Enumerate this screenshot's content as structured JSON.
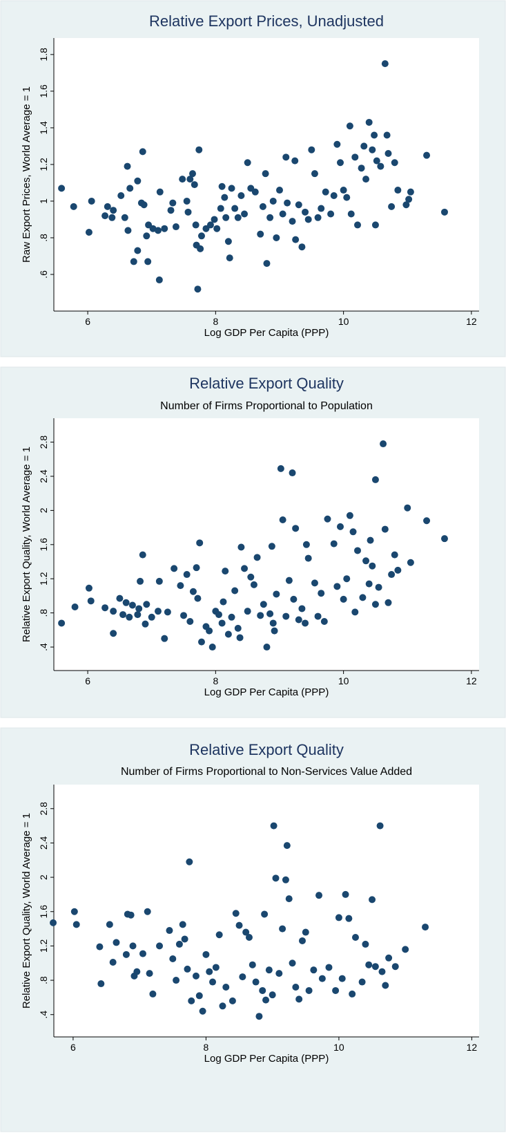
{
  "chart_data": [
    {
      "type": "scatter",
      "title": "Relative Export Prices, Unadjusted",
      "xlabel": "Log GDP Per Capita (PPP)",
      "ylabel": "Raw Export Prices, World Average = 1",
      "color": "#1a476f",
      "xlim": [
        5.47,
        12.12
      ],
      "xticks": [
        6,
        8,
        10,
        12
      ],
      "ylim": [
        0.4,
        1.89
      ],
      "yticks": [
        {
          "value": 0.6,
          "label": ".6"
        },
        {
          "value": 0.8,
          "label": ".8"
        },
        1,
        1.2,
        1.4,
        1.6,
        1.8
      ],
      "x": [
        5.59,
        5.78,
        6.02,
        6.06,
        6.27,
        6.31,
        6.38,
        6.4,
        6.52,
        6.58,
        6.62,
        6.63,
        6.66,
        6.72,
        6.78,
        6.78,
        6.84,
        6.86,
        6.88,
        6.92,
        6.94,
        6.95,
        7.02,
        7.1,
        7.12,
        7.13,
        7.2,
        7.3,
        7.33,
        7.38,
        7.48,
        7.55,
        7.57,
        7.6,
        7.64,
        7.67,
        7.69,
        7.7,
        7.72,
        7.74,
        7.76,
        7.78,
        7.85,
        7.92,
        7.98,
        8.02,
        8.08,
        8.1,
        8.14,
        8.16,
        8.2,
        8.22,
        8.25,
        8.3,
        8.35,
        8.4,
        8.45,
        8.5,
        8.55,
        8.62,
        8.7,
        8.74,
        8.78,
        8.8,
        8.85,
        8.9,
        8.95,
        9.0,
        9.05,
        9.1,
        9.12,
        9.2,
        9.24,
        9.25,
        9.3,
        9.35,
        9.4,
        9.45,
        9.5,
        9.55,
        9.6,
        9.65,
        9.72,
        9.8,
        9.85,
        9.9,
        9.95,
        10.0,
        10.05,
        10.1,
        10.12,
        10.18,
        10.22,
        10.28,
        10.32,
        10.35,
        10.4,
        10.45,
        10.48,
        10.5,
        10.52,
        10.58,
        10.65,
        10.68,
        10.7,
        10.75,
        10.8,
        10.85,
        10.98,
        11.02,
        11.05,
        11.3,
        11.58
      ],
      "values": [
        1.07,
        0.97,
        0.83,
        1.0,
        0.92,
        0.97,
        0.91,
        0.95,
        1.03,
        0.91,
        1.19,
        0.84,
        1.07,
        0.67,
        1.11,
        0.73,
        0.99,
        1.27,
        0.98,
        0.81,
        0.67,
        0.87,
        0.85,
        0.84,
        0.57,
        1.05,
        0.85,
        0.95,
        0.99,
        0.86,
        1.12,
        1.0,
        0.94,
        1.12,
        1.15,
        1.09,
        0.87,
        0.76,
        0.52,
        1.28,
        0.74,
        0.81,
        0.85,
        0.87,
        0.9,
        0.85,
        0.96,
        1.08,
        1.02,
        0.91,
        0.78,
        0.69,
        1.07,
        0.96,
        0.91,
        1.03,
        0.93,
        1.21,
        1.07,
        1.05,
        0.82,
        0.97,
        1.15,
        0.66,
        0.91,
        1.0,
        0.8,
        1.06,
        0.93,
        1.24,
        0.99,
        0.89,
        1.22,
        0.79,
        0.98,
        0.75,
        0.94,
        0.9,
        1.28,
        1.15,
        0.91,
        0.96,
        1.05,
        0.93,
        1.03,
        1.31,
        1.21,
        1.06,
        1.02,
        1.41,
        0.93,
        1.24,
        0.87,
        1.18,
        1.3,
        1.12,
        1.43,
        1.28,
        1.36,
        0.87,
        1.22,
        1.19,
        1.75,
        1.36,
        1.26,
        0.97,
        1.21,
        1.06,
        0.98,
        1.01,
        1.05,
        1.25,
        0.94
      ]
    },
    {
      "type": "scatter",
      "title": "Relative Export Quality",
      "subtitle": "Number of Firms Proportional to Population",
      "xlabel": "Log GDP Per Capita (PPP)",
      "ylabel": "Relative Export Quality, World Average = 1",
      "color": "#1a476f",
      "xlim": [
        5.47,
        12.12
      ],
      "xticks": [
        6,
        8,
        10,
        12
      ],
      "ylim": [
        0.125,
        3.08
      ],
      "yticks": [
        {
          "value": 0.4,
          "label": ".4"
        },
        {
          "value": 0.8,
          "label": ".8"
        },
        1.2,
        1.6,
        2,
        2.4,
        2.8
      ],
      "x": [
        5.59,
        5.8,
        6.02,
        6.05,
        6.27,
        6.4,
        6.4,
        6.5,
        6.55,
        6.6,
        6.65,
        6.7,
        6.78,
        6.8,
        6.82,
        6.86,
        6.9,
        6.92,
        7.0,
        7.1,
        7.12,
        7.2,
        7.25,
        7.35,
        7.45,
        7.5,
        7.55,
        7.6,
        7.65,
        7.7,
        7.72,
        7.75,
        7.78,
        7.85,
        7.9,
        7.95,
        8.0,
        8.05,
        8.1,
        8.12,
        8.15,
        8.2,
        8.25,
        8.3,
        8.35,
        8.38,
        8.4,
        8.45,
        8.5,
        8.55,
        8.6,
        8.65,
        8.7,
        8.75,
        8.8,
        8.85,
        8.88,
        8.9,
        8.92,
        8.95,
        9.02,
        9.05,
        9.1,
        9.15,
        9.2,
        9.22,
        9.25,
        9.3,
        9.35,
        9.4,
        9.42,
        9.45,
        9.55,
        9.6,
        9.65,
        9.7,
        9.75,
        9.85,
        9.9,
        9.95,
        10.0,
        10.05,
        10.1,
        10.15,
        10.18,
        10.22,
        10.3,
        10.35,
        10.4,
        10.42,
        10.45,
        10.5,
        10.5,
        10.55,
        10.62,
        10.65,
        10.7,
        10.75,
        10.8,
        10.85,
        11.0,
        11.05,
        11.3,
        11.58
      ],
      "values": [
        0.68,
        0.87,
        1.09,
        0.94,
        0.86,
        0.82,
        0.56,
        0.97,
        0.78,
        0.92,
        0.75,
        0.89,
        0.78,
        0.85,
        1.17,
        1.48,
        0.67,
        0.9,
        0.75,
        0.82,
        1.17,
        0.5,
        0.81,
        1.32,
        1.12,
        0.77,
        1.25,
        0.7,
        1.05,
        1.33,
        0.97,
        1.62,
        0.46,
        0.64,
        0.59,
        0.4,
        0.82,
        0.78,
        0.68,
        0.93,
        1.29,
        0.55,
        0.75,
        1.06,
        0.62,
        0.51,
        1.57,
        1.32,
        0.82,
        1.22,
        1.13,
        1.45,
        0.77,
        0.9,
        0.4,
        0.79,
        1.58,
        0.68,
        0.59,
        1.02,
        2.49,
        1.89,
        0.76,
        1.18,
        2.44,
        0.96,
        1.79,
        0.72,
        0.85,
        0.68,
        1.6,
        1.44,
        1.15,
        0.76,
        1.03,
        0.7,
        1.9,
        1.61,
        1.11,
        1.81,
        0.96,
        1.2,
        1.94,
        1.75,
        0.81,
        1.53,
        0.98,
        1.41,
        1.14,
        1.65,
        1.35,
        0.9,
        2.36,
        1.1,
        2.78,
        1.78,
        0.92,
        1.25,
        1.48,
        1.3,
        2.03,
        1.39,
        1.88,
        1.67
      ]
    },
    {
      "type": "scatter",
      "title": "Relative Export Quality",
      "subtitle": "Number of Firms Proportional to Non-Services Value Added",
      "xlabel": "Log GDP Per Capita (PPP)",
      "ylabel": "Relative Export Quality, World Average = 1",
      "color": "#1a476f",
      "xlim": [
        5.71,
        12.11
      ],
      "xticks": [
        6,
        8,
        10,
        12
      ],
      "ylim": [
        0.14,
        3.08
      ],
      "yticks": [
        {
          "value": 0.4,
          "label": ".4"
        },
        {
          "value": 0.8,
          "label": ".8"
        },
        1.2,
        1.6,
        2,
        2.4,
        2.8
      ],
      "x": [
        5.7,
        6.02,
        6.05,
        6.4,
        6.42,
        6.55,
        6.6,
        6.65,
        6.8,
        6.82,
        6.87,
        6.9,
        6.92,
        6.96,
        7.05,
        7.12,
        7.15,
        7.2,
        7.3,
        7.45,
        7.5,
        7.55,
        7.6,
        7.65,
        7.68,
        7.72,
        7.75,
        7.78,
        7.85,
        7.9,
        7.95,
        8.0,
        8.05,
        8.1,
        8.15,
        8.2,
        8.25,
        8.3,
        8.4,
        8.45,
        8.5,
        8.55,
        8.6,
        8.65,
        8.7,
        8.75,
        8.8,
        8.85,
        8.88,
        8.9,
        8.95,
        9.0,
        9.02,
        9.05,
        9.1,
        9.15,
        9.2,
        9.22,
        9.25,
        9.3,
        9.35,
        9.4,
        9.45,
        9.5,
        9.55,
        9.62,
        9.7,
        9.75,
        9.85,
        9.95,
        10.0,
        10.05,
        10.1,
        10.15,
        10.2,
        10.25,
        10.35,
        10.4,
        10.45,
        10.5,
        10.55,
        10.62,
        10.65,
        10.7,
        10.75,
        10.85,
        11.0,
        11.3
      ],
      "values": [
        1.47,
        1.6,
        1.45,
        1.19,
        0.76,
        1.45,
        1.01,
        1.24,
        1.1,
        1.57,
        1.56,
        1.2,
        0.85,
        0.9,
        1.11,
        1.6,
        0.88,
        0.64,
        1.2,
        1.38,
        1.05,
        0.8,
        1.22,
        1.45,
        1.28,
        0.93,
        2.18,
        0.56,
        0.85,
        0.62,
        0.44,
        1.1,
        0.9,
        0.78,
        0.95,
        1.33,
        0.5,
        0.72,
        0.56,
        1.58,
        1.44,
        0.84,
        1.36,
        1.3,
        0.98,
        0.78,
        0.38,
        0.68,
        1.57,
        0.57,
        0.92,
        0.63,
        2.6,
        1.99,
        0.88,
        1.4,
        1.97,
        2.37,
        1.75,
        1.0,
        0.72,
        0.58,
        1.26,
        1.36,
        0.68,
        0.92,
        1.79,
        0.82,
        0.95,
        0.68,
        1.53,
        0.82,
        1.8,
        1.52,
        0.64,
        1.3,
        0.78,
        1.22,
        0.98,
        1.74,
        0.96,
        2.6,
        0.9,
        0.74,
        1.06,
        0.96,
        1.16,
        1.42
      ]
    }
  ]
}
